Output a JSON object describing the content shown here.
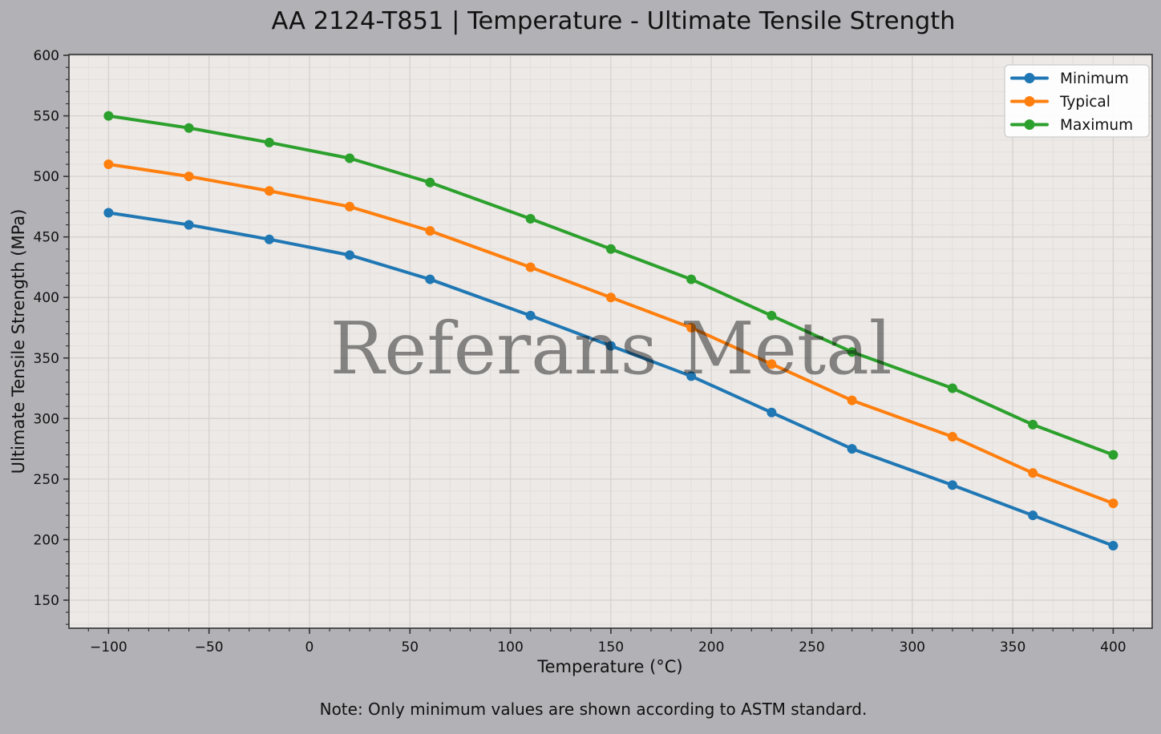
{
  "figure": {
    "background": "#b1b1b6",
    "plot_background": "#ece9e6",
    "grid_major_color": "#d5d2cf",
    "grid_minor_color": "#e2dfdc",
    "spine_color": "#333333",
    "tick_color": "#333333",
    "text_color": "#111111",
    "legend_background": "#ffffff",
    "legend_border": "#cccccc",
    "watermark_color": "#555555",
    "watermark_opacity": 0.47
  },
  "chart_data": {
    "type": "line",
    "title": "AA 2124-T851 | Temperature - Ultimate Tensile Strength",
    "xlabel": "Temperature (°C)",
    "ylabel": "Ultimate Tensile Strength (MPa)",
    "watermark": "Referans Metal",
    "note": "Note: Only minimum values are shown according to ASTM standard.",
    "x": [
      -100,
      -60,
      -20,
      20,
      60,
      110,
      150,
      190,
      230,
      270,
      320,
      360,
      400
    ],
    "series": [
      {
        "name": "Minimum",
        "color": "#1f77b4",
        "values": [
          470,
          460,
          448,
          435,
          415,
          385,
          360,
          335,
          305,
          275,
          245,
          220,
          195
        ]
      },
      {
        "name": "Typical",
        "color": "#ff7f0e",
        "values": [
          510,
          500,
          488,
          475,
          455,
          425,
          400,
          375,
          345,
          315,
          285,
          255,
          230
        ]
      },
      {
        "name": "Maximum",
        "color": "#2ca02c",
        "values": [
          550,
          540,
          528,
          515,
          495,
          465,
          440,
          415,
          385,
          355,
          325,
          295,
          270
        ]
      }
    ],
    "axes": {
      "xlim": [
        -119.7,
        419.4
      ],
      "ylim": [
        126.8,
        600.7
      ],
      "xtick_values": [
        -100,
        -50,
        0,
        50,
        100,
        150,
        200,
        250,
        300,
        350,
        400
      ],
      "xtick_labels": [
        "−100",
        "−50",
        "0",
        "50",
        "100",
        "150",
        "200",
        "250",
        "300",
        "350",
        "400"
      ],
      "ytick_values": [
        150,
        200,
        250,
        300,
        350,
        400,
        450,
        500,
        550,
        600
      ],
      "ytick_labels": [
        "150",
        "200",
        "250",
        "300",
        "350",
        "400",
        "450",
        "500",
        "550",
        "600"
      ],
      "minor_step": 10,
      "grid": "major+minor"
    },
    "legend": {
      "position": "upper right",
      "entries": [
        "Minimum",
        "Typical",
        "Maximum"
      ]
    }
  }
}
